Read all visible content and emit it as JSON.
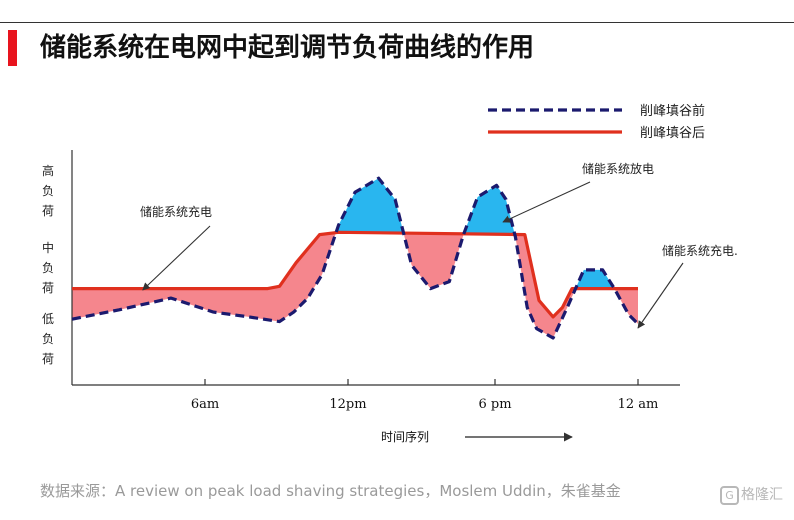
{
  "title": "储能系统在电网中起到调节负荷曲线的作用",
  "source": "数据来源：A review on peak load shaving strategies，Moslem Uddin，朱雀基金",
  "watermark": "格隆汇",
  "chart_data": {
    "type": "line",
    "title": "",
    "xlabel": "时间序列",
    "ylabel": "",
    "x_ticks": [
      "6am",
      "12pm",
      "6 pm",
      "12 am"
    ],
    "x_range_hours": [
      0,
      25.5
    ],
    "y_range": [
      0,
      100
    ],
    "y_levels": [
      {
        "label": "高负荷",
        "value": 82
      },
      {
        "label": "中负荷",
        "value": 51
      },
      {
        "label": "低负荷",
        "value": 15
      }
    ],
    "legend_position": "top-right",
    "series": [
      {
        "name": "削峰填谷前",
        "color": "#1b1a6e",
        "style": "dashed",
        "x": [
          0,
          2,
          4.2,
          6,
          7.5,
          8.8,
          9.4,
          10,
          10.6,
          11.3,
          12,
          13,
          13.7,
          14.4,
          15.2,
          16,
          16.6,
          17.2,
          18,
          18.4,
          18.8,
          19.3,
          19.7,
          20.4,
          21,
          21.7,
          22.5,
          23,
          23.6,
          24
        ],
        "y": [
          28,
          32,
          37,
          31,
          29,
          27,
          31,
          37,
          47,
          68,
          82,
          88,
          79,
          51,
          41,
          44,
          64,
          80,
          85,
          79,
          63,
          33,
          24,
          20,
          33,
          49,
          49,
          41,
          30,
          26
        ]
      },
      {
        "name": "削峰填谷后",
        "color": "#e0301e",
        "style": "solid",
        "x": [
          0,
          8.3,
          8.8,
          9.5,
          10.5,
          11.3,
          19.2,
          19.8,
          20.4,
          20.8,
          21.2,
          24
        ],
        "y": [
          41,
          41,
          42,
          52,
          64,
          65,
          64,
          36,
          29,
          33,
          41,
          41
        ]
      }
    ],
    "annotations": [
      {
        "text": "储能系统充电",
        "target_hour": 3
      },
      {
        "text": "储能系统放电",
        "target_hour": 18.2
      },
      {
        "text": "储能系统充电.",
        "target_hour": 24
      }
    ],
    "fill_colors": {
      "discharge": "#29b6ef",
      "charge": "#f5868d"
    }
  }
}
